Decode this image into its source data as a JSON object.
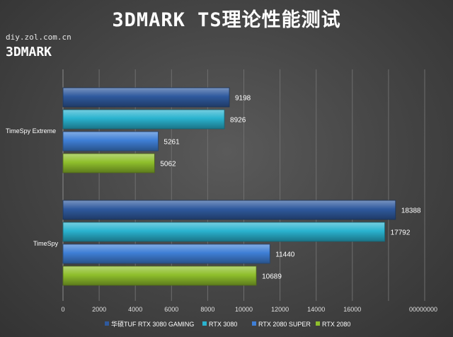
{
  "header": {
    "title": "3DMARK  TS理论性能测试",
    "watermark": "diy.zol.com.cn",
    "subtitle": "3DMARK"
  },
  "chart_data": {
    "type": "bar",
    "orientation": "horizontal",
    "title": "3DMARK  TS理论性能测试",
    "xlabel": "",
    "ylabel": "",
    "xlim": [
      0,
      20000
    ],
    "grid": true,
    "legend_position": "bottom",
    "categories": [
      "TimeSpy Extreme",
      "TimeSpy"
    ],
    "x_tick_labels": [
      "0",
      "2000",
      "4000",
      "6000",
      "8000",
      "10000",
      "12000",
      "14000",
      "16000",
      "",
      "00000000"
    ],
    "series": [
      {
        "name": "华硕TUF RTX 3080 GAMING",
        "color": "#2f5a9e",
        "values": [
          9198,
          18388
        ]
      },
      {
        "name": "RTX 3080",
        "color": "#2ab3cf",
        "values": [
          8926,
          17792
        ]
      },
      {
        "name": "RTX 2080 SUPER",
        "color": "#3f7fd6",
        "values": [
          5261,
          11440
        ]
      },
      {
        "name": "RTX 2080",
        "color": "#8fbf2c",
        "values": [
          5062,
          10689
        ]
      }
    ]
  }
}
